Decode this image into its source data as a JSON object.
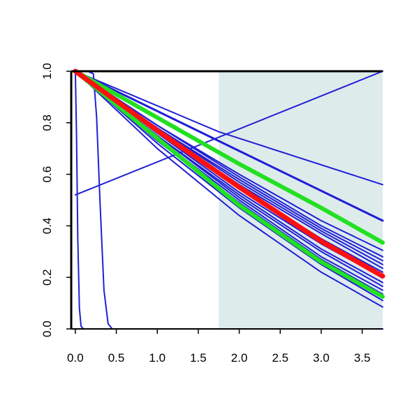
{
  "chart_data": {
    "type": "line",
    "title": "",
    "xlabel": "",
    "ylabel": "",
    "xlim": [
      -0.05,
      3.75
    ],
    "ylim": [
      0.0,
      1.0
    ],
    "x_ticks": [
      "0.0",
      "0.5",
      "1.0",
      "1.5",
      "2.0",
      "2.5",
      "3.0",
      "3.5"
    ],
    "y_ticks": [
      "0.0",
      "0.2",
      "0.4",
      "0.6",
      "0.8",
      "1.0"
    ],
    "shaded_region": {
      "x_from": 1.75,
      "x_to": 3.75,
      "color": "#deebeb"
    },
    "colors": {
      "blue": "#1f1fd6",
      "red": "#ff1010",
      "green": "#22e022",
      "axis": "#000000"
    },
    "series": [
      {
        "color": "blue",
        "width": 2,
        "x": [
          0,
          1.75,
          3.75
        ],
        "y": [
          1.0,
          0.765,
          0.56
        ]
      },
      {
        "color": "blue",
        "width": 3,
        "x": [
          0,
          3.75
        ],
        "y": [
          1.0,
          0.42
        ]
      },
      {
        "color": "blue",
        "width": 2,
        "x": [
          0,
          3.75
        ],
        "y": [
          0.52,
          1.0
        ]
      },
      {
        "color": "green",
        "width": 6,
        "x": [
          0,
          1.0,
          2.0,
          3.0,
          3.75
        ],
        "y": [
          1.0,
          0.82,
          0.64,
          0.47,
          0.335
        ]
      },
      {
        "color": "green",
        "width": 6,
        "x": [
          0,
          1.0,
          2.0,
          3.0,
          3.75
        ],
        "y": [
          1.0,
          0.74,
          0.48,
          0.26,
          0.125
        ]
      },
      {
        "color": "red",
        "width": 7,
        "x": [
          0,
          1.0,
          2.0,
          3.0,
          3.75
        ],
        "y": [
          1.0,
          0.77,
          0.55,
          0.34,
          0.205
        ]
      },
      {
        "color": "blue",
        "width": 2,
        "x": [
          0,
          1.0,
          2.0,
          3.0,
          3.75
        ],
        "y": [
          1.0,
          0.79,
          0.6,
          0.42,
          0.305
        ]
      },
      {
        "color": "blue",
        "width": 2,
        "x": [
          0,
          1.0,
          2.0,
          3.0,
          3.75
        ],
        "y": [
          1.0,
          0.79,
          0.59,
          0.4,
          0.28
        ]
      },
      {
        "color": "blue",
        "width": 2,
        "x": [
          0,
          1.0,
          2.0,
          3.0,
          3.75
        ],
        "y": [
          1.0,
          0.78,
          0.58,
          0.39,
          0.265
        ]
      },
      {
        "color": "blue",
        "width": 2,
        "x": [
          0,
          1.0,
          2.0,
          3.0,
          3.75
        ],
        "y": [
          1.0,
          0.78,
          0.57,
          0.38,
          0.25
        ]
      },
      {
        "color": "blue",
        "width": 2,
        "x": [
          0,
          1.0,
          2.0,
          3.0,
          3.75
        ],
        "y": [
          1.0,
          0.77,
          0.56,
          0.37,
          0.235
        ]
      },
      {
        "color": "blue",
        "width": 2,
        "x": [
          0,
          1.0,
          2.0,
          3.0,
          3.75
        ],
        "y": [
          1.0,
          0.76,
          0.55,
          0.35,
          0.22
        ]
      },
      {
        "color": "blue",
        "width": 2,
        "x": [
          0,
          1.0,
          2.0,
          3.0,
          3.75
        ],
        "y": [
          1.0,
          0.76,
          0.53,
          0.33,
          0.2
        ]
      },
      {
        "color": "blue",
        "width": 2,
        "x": [
          0,
          1.0,
          2.0,
          3.0,
          3.75
        ],
        "y": [
          1.0,
          0.75,
          0.52,
          0.31,
          0.18
        ]
      },
      {
        "color": "blue",
        "width": 2,
        "x": [
          0,
          1.0,
          2.0,
          3.0,
          3.75
        ],
        "y": [
          1.0,
          0.75,
          0.51,
          0.3,
          0.165
        ]
      },
      {
        "color": "blue",
        "width": 2,
        "x": [
          0,
          1.0,
          2.0,
          3.0,
          3.75
        ],
        "y": [
          1.0,
          0.74,
          0.5,
          0.28,
          0.15
        ]
      },
      {
        "color": "blue",
        "width": 2,
        "x": [
          0,
          1.0,
          2.0,
          3.0,
          3.75
        ],
        "y": [
          1.0,
          0.73,
          0.49,
          0.27,
          0.135
        ]
      },
      {
        "color": "blue",
        "width": 2,
        "x": [
          0,
          1.0,
          2.0,
          3.0,
          3.75
        ],
        "y": [
          1.0,
          0.72,
          0.47,
          0.25,
          0.11
        ]
      },
      {
        "color": "blue",
        "width": 2,
        "x": [
          0,
          1.0,
          2.0,
          3.0,
          3.75
        ],
        "y": [
          1.0,
          0.7,
          0.44,
          0.22,
          0.085
        ]
      },
      {
        "color": "blue",
        "width": 2,
        "x": [
          0,
          0.15,
          0.22,
          0.26,
          0.3,
          0.35,
          0.4,
          0.45,
          3.75
        ],
        "y": [
          1.0,
          1.0,
          0.99,
          0.82,
          0.5,
          0.15,
          0.02,
          0.0,
          0.0
        ]
      },
      {
        "color": "blue",
        "width": 2,
        "x": [
          0,
          0.015,
          0.03,
          0.05,
          0.07,
          0.1,
          3.75
        ],
        "y": [
          1.0,
          0.75,
          0.35,
          0.08,
          0.01,
          0.0,
          0.0
        ]
      }
    ]
  }
}
